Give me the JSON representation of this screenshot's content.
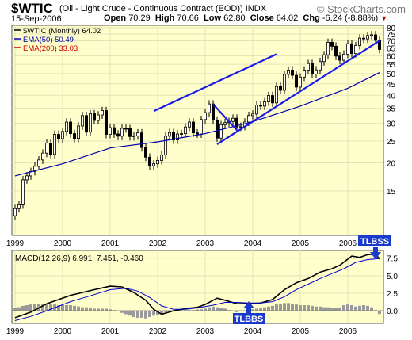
{
  "header": {
    "symbol": "$WTIC",
    "description": "(Oil - Light Crude - Continuous Contract (EOD))",
    "exchange": "INDX",
    "date": "15-Sep-2006",
    "open_label": "Open",
    "open": "70.29",
    "high_label": "High",
    "high": "70.66",
    "low_label": "Low",
    "low": "62.80",
    "close_label": "Close",
    "close": "64.02",
    "chg_label": "Chg",
    "chg": "-6.24 (-8.88%)",
    "brand": "© StockCharts.com"
  },
  "colors": {
    "panel_bg": "#ffffcc",
    "grid": "#e3e3b8",
    "candle": "#000000",
    "ema50": "#0000aa",
    "ema200": "#cc0000",
    "trendline": "#1a1ae6",
    "macd": "#000000",
    "signal": "#0000cc",
    "histogram": "#9a9a9a",
    "annotation": "#1a3acc"
  },
  "chart_data": [
    {
      "type": "candlestick",
      "title": "$WTIC (Monthly) 64.02",
      "legend": [
        {
          "name": "$WTIC (Monthly) 64.02",
          "color": "#000000"
        },
        {
          "name": "EMA(50) 50.49",
          "color": "#0000aa"
        },
        {
          "name": "EMA(200) 33.03",
          "color": "#cc0000"
        }
      ],
      "legend_placement": "top-left",
      "y_scale": "log",
      "ylim": [
        9.5,
        82
      ],
      "y_ticks": [
        15,
        20,
        25,
        30,
        35,
        40,
        45,
        50,
        55,
        60,
        65,
        70,
        75,
        80
      ],
      "x_ticks": [
        "1999",
        "2000",
        "2001",
        "2002",
        "2003",
        "2004",
        "2005",
        "2006"
      ],
      "grid": true,
      "months": 93,
      "closes": [
        12.5,
        13.0,
        16.8,
        17.5,
        18.3,
        19.3,
        20.6,
        22.1,
        24.5,
        21.8,
        26.8,
        25.6,
        27.6,
        30.4,
        27.0,
        25.7,
        29.2,
        32.5,
        27.4,
        33.1,
        30.9,
        32.7,
        34.2,
        26.8,
        28.7,
        26.9,
        26.3,
        28.5,
        28.4,
        26.2,
        26.4,
        27.2,
        23.4,
        21.2,
        19.4,
        19.8,
        20.5,
        21.7,
        26.3,
        27.3,
        25.3,
        26.9,
        27.0,
        28.9,
        30.4,
        27.2,
        26.9,
        31.2,
        33.5,
        36.6,
        31.0,
        25.8,
        29.6,
        30.2,
        30.6,
        31.6,
        28.9,
        29.1,
        30.4,
        32.5,
        33.0,
        36.2,
        35.8,
        37.4,
        39.9,
        37.0,
        43.8,
        42.1,
        49.6,
        51.8,
        49.1,
        43.5,
        48.2,
        51.8,
        55.4,
        49.7,
        51.9,
        56.5,
        60.6,
        68.9,
        66.2,
        59.8,
        57.3,
        61.0,
        67.9,
        61.4,
        66.6,
        71.9,
        71.3,
        73.9,
        74.4,
        70.3,
        64.0
      ],
      "ema50": {
        "name": "EMA(50)",
        "last": 50.49,
        "points": [
          [
            0,
            17.5
          ],
          [
            12,
            19.8
          ],
          [
            24,
            23.3
          ],
          [
            36,
            24.8
          ],
          [
            48,
            27.0
          ],
          [
            60,
            30.5
          ],
          [
            72,
            35.8
          ],
          [
            84,
            43.0
          ],
          [
            92,
            50.5
          ]
        ]
      },
      "trendlines": [
        {
          "from": [
            35,
            34.0
          ],
          "to": [
            66,
            61.0
          ]
        },
        {
          "from": [
            50,
            36.5
          ],
          "to": [
            56,
            28.0
          ]
        },
        {
          "from": [
            51,
            24.2
          ],
          "to": [
            92,
            70.0
          ]
        }
      ]
    },
    {
      "type": "line",
      "title": "MACD(12,26,9) 6.991, 7.451, -0.460",
      "series": [
        {
          "name": "MACD",
          "last": 6.991,
          "points": [
            [
              0,
              -1.0
            ],
            [
              4,
              -0.2
            ],
            [
              8,
              1.0
            ],
            [
              14,
              2.2
            ],
            [
              20,
              3.0
            ],
            [
              24,
              3.5
            ],
            [
              27,
              3.4
            ],
            [
              30,
              2.6
            ],
            [
              33,
              1.5
            ],
            [
              35,
              0.2
            ],
            [
              37,
              -0.5
            ],
            [
              40,
              0.0
            ],
            [
              43,
              0.3
            ],
            [
              46,
              0.5
            ],
            [
              48,
              0.9
            ],
            [
              51,
              1.8
            ],
            [
              53,
              1.5
            ],
            [
              56,
              1.0
            ],
            [
              59,
              1.0
            ],
            [
              62,
              1.1
            ],
            [
              65,
              1.6
            ],
            [
              68,
              3.0
            ],
            [
              71,
              4.0
            ],
            [
              74,
              4.6
            ],
            [
              77,
              5.5
            ],
            [
              80,
              6.0
            ],
            [
              82,
              6.5
            ],
            [
              85,
              7.8
            ],
            [
              87,
              7.6
            ],
            [
              89,
              8.0
            ],
            [
              91,
              8.1
            ],
            [
              92,
              7.4
            ]
          ]
        },
        {
          "name": "Signal",
          "last": 7.451,
          "points": [
            [
              0,
              -1.4
            ],
            [
              4,
              -0.8
            ],
            [
              8,
              0.0
            ],
            [
              14,
              1.3
            ],
            [
              20,
              2.3
            ],
            [
              24,
              3.0
            ],
            [
              28,
              3.2
            ],
            [
              31,
              2.8
            ],
            [
              34,
              1.9
            ],
            [
              37,
              0.7
            ],
            [
              40,
              0.2
            ],
            [
              43,
              0.2
            ],
            [
              46,
              0.4
            ],
            [
              50,
              0.8
            ],
            [
              53,
              1.2
            ],
            [
              56,
              1.2
            ],
            [
              59,
              1.1
            ],
            [
              62,
              1.1
            ],
            [
              65,
              1.3
            ],
            [
              68,
              2.0
            ],
            [
              71,
              3.0
            ],
            [
              74,
              3.8
            ],
            [
              77,
              4.6
            ],
            [
              80,
              5.3
            ],
            [
              83,
              6.0
            ],
            [
              86,
              6.9
            ],
            [
              89,
              7.3
            ],
            [
              92,
              7.45
            ]
          ]
        }
      ],
      "histogram": [
        0.4,
        0.5,
        0.7,
        0.8,
        0.9,
        1.0,
        1.0,
        1.0,
        1.0,
        0.9,
        0.9,
        0.8,
        0.8,
        0.8,
        0.8,
        0.7,
        0.6,
        0.5,
        0.5,
        0.4,
        0.3,
        0.3,
        0.3,
        0.3,
        0.2,
        0.1,
        -0.1,
        -0.3,
        -0.5,
        -0.7,
        -0.9,
        -1.0,
        -1.0,
        -1.1,
        -0.9,
        -0.7,
        -0.6,
        -0.4,
        -0.2,
        -0.1,
        0.0,
        0.1,
        0.1,
        0.1,
        0.1,
        0.1,
        0.2,
        0.2,
        0.3,
        0.5,
        0.6,
        0.5,
        0.4,
        0.3,
        0.1,
        -0.1,
        -0.2,
        -0.1,
        0.0,
        0.1,
        0.2,
        0.3,
        0.4,
        0.5,
        0.6,
        0.7,
        0.9,
        1.0,
        1.1,
        1.1,
        1.0,
        0.9,
        0.8,
        0.8,
        0.8,
        0.7,
        0.6,
        0.6,
        0.5,
        0.5,
        0.4,
        0.4,
        0.4,
        0.8,
        0.9,
        0.8,
        0.6,
        0.7,
        0.8,
        0.7,
        0.5,
        0.1,
        -0.46
      ],
      "ylim": [
        -1.8,
        8.6
      ],
      "y_ticks": [
        0.0,
        2.5,
        5.0,
        7.5
      ],
      "x_ticks": [
        "1999",
        "2000",
        "2001",
        "2002",
        "2003",
        "2004",
        "2005",
        "2006"
      ],
      "grid": true,
      "annotations": [
        {
          "text": "TLBBS",
          "at_month": 59,
          "direction": "up"
        },
        {
          "text": "TLBSS",
          "at_month": 91,
          "direction": "down"
        }
      ]
    }
  ]
}
